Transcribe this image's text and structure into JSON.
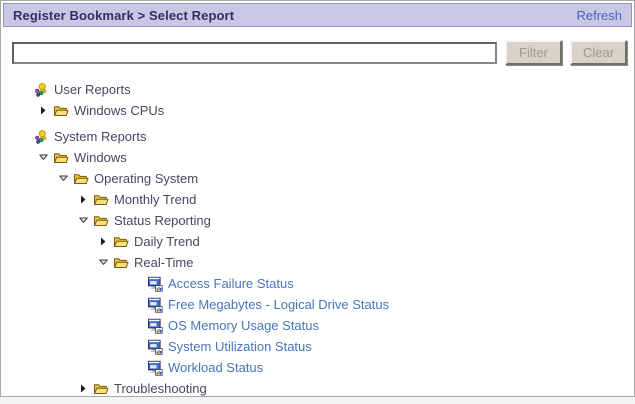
{
  "window": {
    "title": "Register Bookmark > Select Report",
    "refresh_label": "Refresh"
  },
  "filter_bar": {
    "input_value": "",
    "input_placeholder": "",
    "filter_button_label": "Filter",
    "clear_button_label": "Clear"
  },
  "tree": {
    "nodes": [
      {
        "label": "User Reports",
        "level": 0,
        "type": "group",
        "icon": "reports-group-icon",
        "expander": "none"
      },
      {
        "label": "Windows CPUs",
        "level": 1,
        "type": "folder",
        "icon": "folder-icon",
        "expander": "collapsed"
      },
      {
        "label": "System Reports",
        "level": 0,
        "type": "group",
        "icon": "reports-group-icon",
        "expander": "none"
      },
      {
        "label": "Windows",
        "level": 1,
        "type": "folder",
        "icon": "folder-icon",
        "expander": "expanded"
      },
      {
        "label": "Operating System",
        "level": 2,
        "type": "folder",
        "icon": "folder-icon",
        "expander": "expanded"
      },
      {
        "label": "Monthly Trend",
        "level": 3,
        "type": "folder",
        "icon": "folder-icon",
        "expander": "collapsed"
      },
      {
        "label": "Status Reporting",
        "level": 3,
        "type": "folder",
        "icon": "folder-icon",
        "expander": "expanded"
      },
      {
        "label": "Daily Trend",
        "level": 4,
        "type": "folder",
        "icon": "folder-icon",
        "expander": "collapsed"
      },
      {
        "label": "Real-Time",
        "level": 4,
        "type": "folder",
        "icon": "folder-icon",
        "expander": "expanded"
      },
      {
        "label": "Access Failure Status",
        "level": 5,
        "type": "report",
        "icon": "report-icon",
        "expander": "none"
      },
      {
        "label": "Free Megabytes - Logical Drive Status",
        "level": 5,
        "type": "report",
        "icon": "report-icon",
        "expander": "none"
      },
      {
        "label": "OS Memory Usage Status",
        "level": 5,
        "type": "report",
        "icon": "report-icon",
        "expander": "none"
      },
      {
        "label": "System Utilization Status",
        "level": 5,
        "type": "report",
        "icon": "report-icon",
        "expander": "none"
      },
      {
        "label": "Workload Status",
        "level": 5,
        "type": "report",
        "icon": "report-icon",
        "expander": "none"
      },
      {
        "label": "Troubleshooting",
        "level": 3,
        "type": "folder",
        "icon": "folder-icon",
        "expander": "collapsed"
      }
    ]
  },
  "colors": {
    "titlebar_bg": "#c8c8e4",
    "titlebar_border": "#9093c4",
    "title_text": "#2f3166",
    "refresh_link": "#4a63c8",
    "tree_label_text": "#4c4560",
    "report_link_text": "#4577b8",
    "folder_yellow": "#edbe3a",
    "window_border": "#a9a9a9",
    "button_face": "#d7d3cb",
    "button_text": "#9c9a94"
  }
}
